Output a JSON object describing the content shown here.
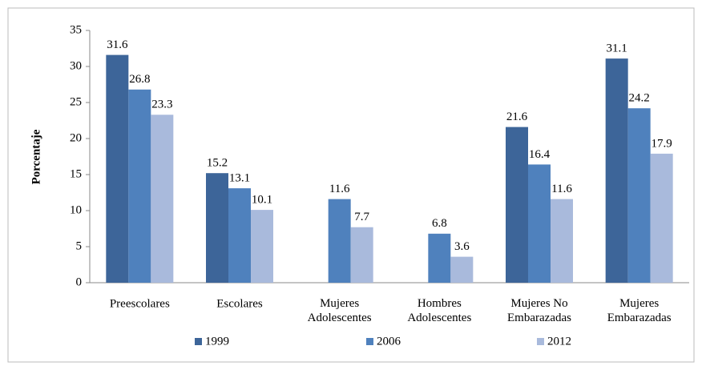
{
  "chart_data": {
    "type": "bar",
    "y_label": "Porcentaje",
    "categories": [
      "Preescolares",
      "Escolares",
      "Mujeres\nAdolescentes",
      "Hombres\nAdolescentes",
      "Mujeres No\nEmbarazadas",
      "Mujeres\nEmbarazadas"
    ],
    "series": [
      {
        "name": "1999",
        "color": "#3d6599",
        "values": [
          31.6,
          15.2,
          null,
          null,
          21.6,
          31.1
        ]
      },
      {
        "name": "2006",
        "color": "#4f81bd",
        "values": [
          26.8,
          13.1,
          11.6,
          6.8,
          16.4,
          24.2
        ]
      },
      {
        "name": "2012",
        "color": "#a9badc",
        "values": [
          23.3,
          10.1,
          7.7,
          3.6,
          11.6,
          17.9
        ]
      }
    ],
    "ylim": [
      0,
      35
    ],
    "yticks": [
      0,
      5,
      10,
      15,
      20,
      25,
      30,
      35
    ],
    "legend": "bottom"
  }
}
